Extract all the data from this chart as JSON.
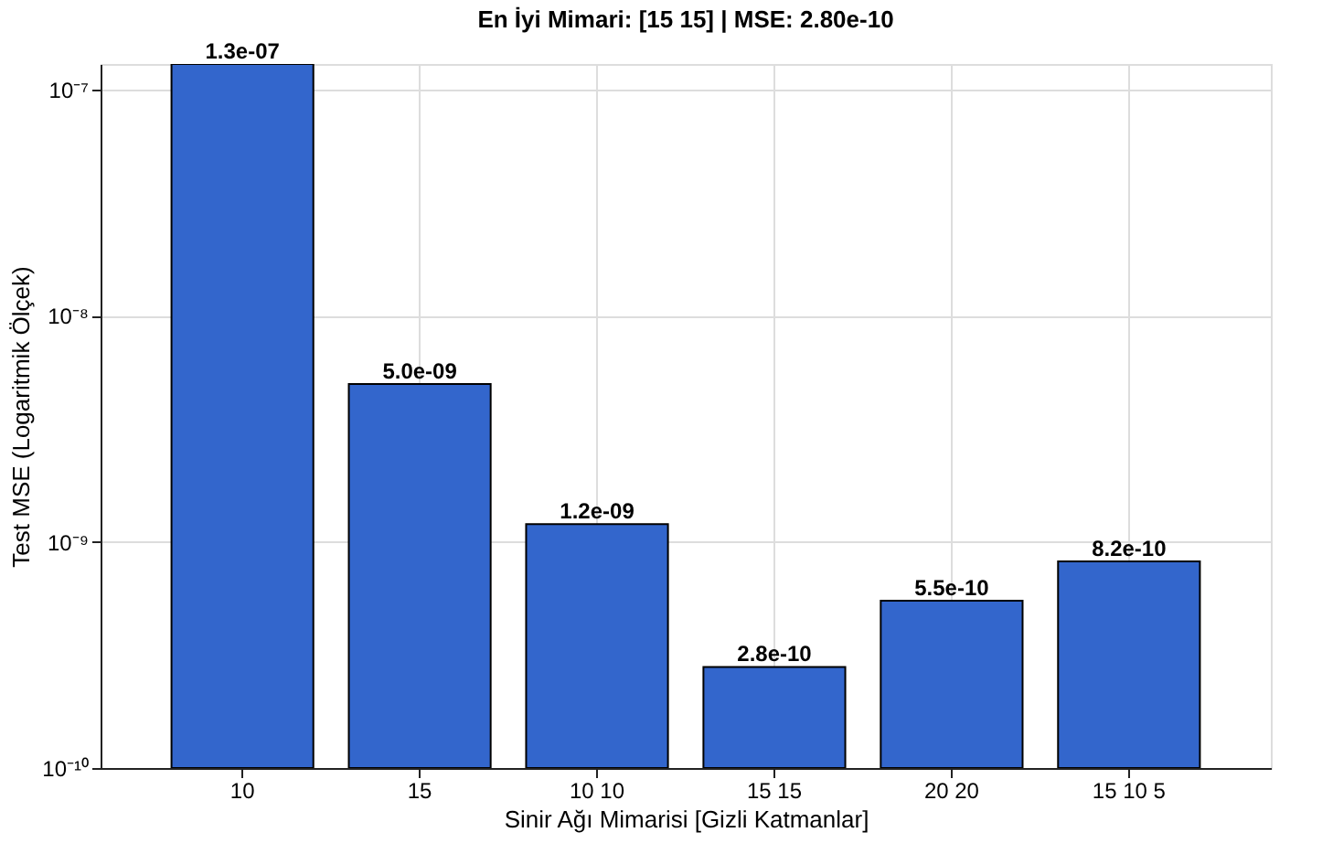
{
  "chart_data": {
    "type": "bar",
    "title": "En İyi Mimari: [15  15] | MSE: 2.80e-10",
    "xlabel": "Sinir Ağı Mimarisi [Gizli Katmanlar]",
    "ylabel": "Test MSE (Logaritmik Ölçek)",
    "categories": [
      "10",
      "15",
      "10  10",
      "15  15",
      "20  20",
      "15  10  5"
    ],
    "values": [
      1.3e-07,
      5e-09,
      1.2e-09,
      2.8e-10,
      5.5e-10,
      8.2e-10
    ],
    "value_labels": [
      "1.3e-07",
      "5.0e-09",
      "1.2e-09",
      "2.8e-10",
      "5.5e-10",
      "8.2e-10"
    ],
    "color": "#3366cc",
    "log": "y",
    "ylim": [
      1e-10,
      1.3e-07
    ],
    "yticks": [
      {
        "value": 1e-10,
        "label": "10⁻¹⁰"
      },
      {
        "value": 1e-09,
        "label": "10⁻⁹"
      },
      {
        "value": 1e-08,
        "label": "10⁻⁸"
      },
      {
        "value": 1e-07,
        "label": "10⁻⁷"
      }
    ],
    "grid": true
  }
}
